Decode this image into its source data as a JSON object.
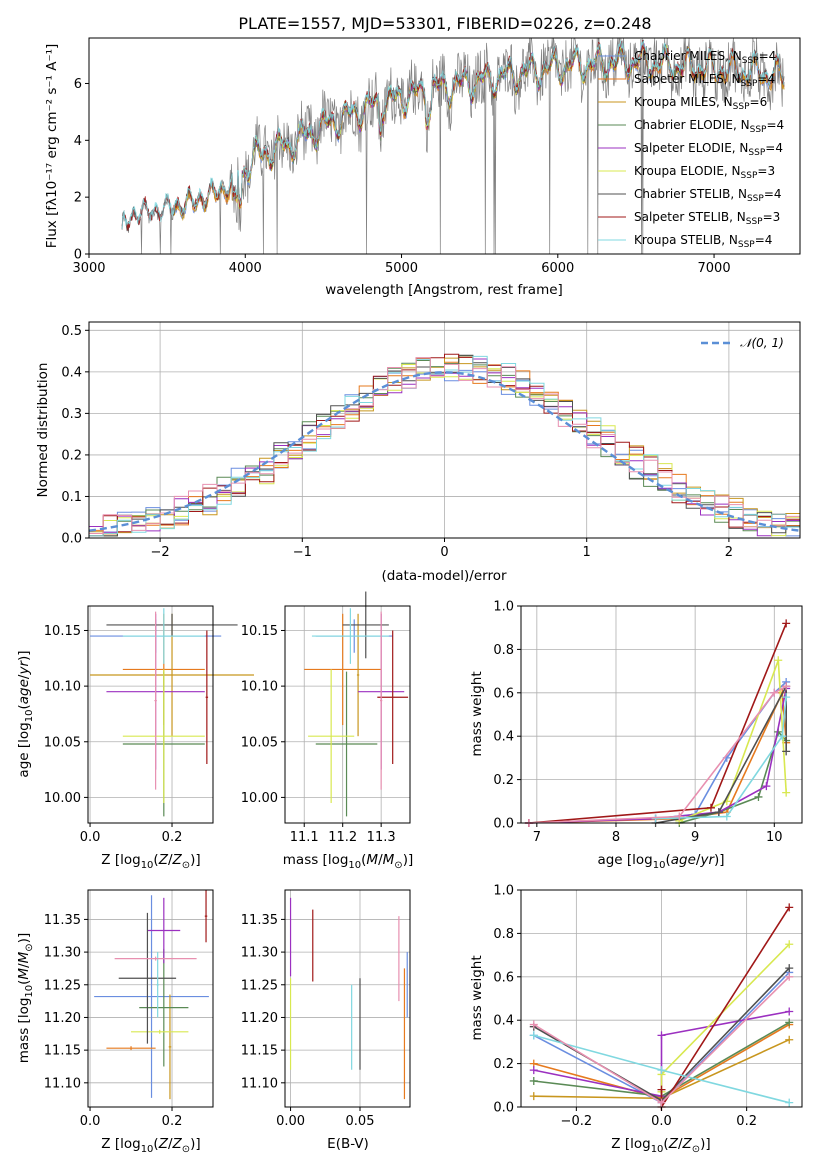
{
  "colors": {
    "Chabrier MILES": "#6a8ee0",
    "Salpeter MILES": "#e67a1e",
    "Kroupa MILES": "#c8961e",
    "Chabrier ELODIE": "#5a8a55",
    "Salpeter ELODIE": "#9b30c0",
    "Kroupa ELODIE": "#d8e850",
    "Chabrier STELIB": "#505050",
    "Salpeter STELIB": "#a01818",
    "Kroupa STELIB": "#80d8e0",
    "extra_pink": "#e890b0",
    "gaussian": "#5b8fd6"
  },
  "chart_data": [
    {
      "id": "spectrum",
      "type": "line",
      "title": "PLATE=1557, MJD=53301, FIBERID=0226, z=0.248",
      "xlabel": "wavelength [Angstrom, rest frame]",
      "ylabel": "Flux [fλ10⁻¹⁷ erg cm⁻² s⁻¹ A⁻¹]",
      "xlim": [
        3000,
        7550
      ],
      "ylim": [
        0,
        7.6
      ],
      "xticks": [
        "3000",
        "4000",
        "5000",
        "6000",
        "7000"
      ],
      "yticks": [
        "0",
        "2",
        "4",
        "6"
      ],
      "grid": false,
      "legend_position": "top-right",
      "legend": [
        {
          "label": "Chabrier MILES, N",
          "sub": "SSP",
          "suffix": "=4"
        },
        {
          "label": "Salpeter MILES, N",
          "sub": "SSP",
          "suffix": "=4"
        },
        {
          "label": "Kroupa MILES, N",
          "sub": "SSP",
          "suffix": "=6"
        },
        {
          "label": "Chabrier ELODIE, N",
          "sub": "SSP",
          "suffix": "=4"
        },
        {
          "label": "Salpeter ELODIE, N",
          "sub": "SSP",
          "suffix": "=4"
        },
        {
          "label": "Kroupa ELODIE, N",
          "sub": "SSP",
          "suffix": "=3"
        },
        {
          "label": "Chabrier STELIB, N",
          "sub": "SSP",
          "suffix": "=4"
        },
        {
          "label": "Salpeter STELIB, N",
          "sub": "SSP",
          "suffix": "=3"
        },
        {
          "label": "Kroupa STELIB, N",
          "sub": "SSP",
          "suffix": "=4"
        }
      ],
      "continuum_knots": [
        [
          3210,
          0.0
        ],
        [
          3215,
          1.0
        ],
        [
          3300,
          1.4
        ],
        [
          3500,
          1.55
        ],
        [
          3700,
          1.9
        ],
        [
          3900,
          2.35
        ],
        [
          3980,
          2.8
        ],
        [
          4050,
          3.4
        ],
        [
          4300,
          3.9
        ],
        [
          4500,
          4.5
        ],
        [
          4800,
          5.2
        ],
        [
          5200,
          5.8
        ],
        [
          5600,
          6.2
        ],
        [
          6000,
          6.6
        ],
        [
          6500,
          6.8
        ],
        [
          7000,
          6.5
        ],
        [
          7300,
          6.4
        ],
        [
          7450,
          6.2
        ]
      ]
    },
    {
      "id": "residuals",
      "type": "histogram",
      "xlabel": "(data-model)/error",
      "ylabel": "Normed distribution",
      "xlim": [
        -2.5,
        2.5
      ],
      "ylim": [
        0,
        0.52
      ],
      "xticks": [
        "−2",
        "−1",
        "0",
        "1",
        "2"
      ],
      "yticks": [
        "0.0",
        "0.1",
        "0.2",
        "0.3",
        "0.4",
        "0.5"
      ],
      "bin_width": 0.1,
      "grid": true,
      "legend_position": "top-right",
      "reference_curve": "𝒩(0, 1)"
    },
    {
      "id": "age_vs_Z",
      "type": "errorbar",
      "xlabel": "Z [log10(Z/Z⊙)]",
      "ylabel": "age [log10(age/yr)]",
      "xlim": [
        -0.005,
        0.3
      ],
      "ylim": [
        9.977,
        10.172
      ],
      "xticks": [
        "0.0",
        "0.2"
      ],
      "yticks": [
        "10.00",
        "10.05",
        "10.10",
        "10.15"
      ],
      "points": [
        {
          "c": "Chabrier MILES",
          "x": 0.16,
          "y": 10.145,
          "xe": 0.16,
          "ye": 0.015
        },
        {
          "c": "Salpeter MILES",
          "x": 0.18,
          "y": 10.115,
          "xe": 0.1,
          "ye": 0.05
        },
        {
          "c": "Kroupa MILES",
          "x": 0.2,
          "y": 10.11,
          "xe": 0.2,
          "ye": 0.055
        },
        {
          "c": "Chabrier ELODIE",
          "x": 0.18,
          "y": 10.048,
          "xe": 0.1,
          "ye": 0.065
        },
        {
          "c": "Salpeter ELODIE",
          "x": 0.16,
          "y": 10.095,
          "xe": 0.12,
          "ye": 0.07
        },
        {
          "c": "Kroupa ELODIE",
          "x": 0.18,
          "y": 10.055,
          "xe": 0.1,
          "ye": 0.06
        },
        {
          "c": "Chabrier STELIB",
          "x": 0.2,
          "y": 10.155,
          "xe": 0.16,
          "ye": 0.01
        },
        {
          "c": "Salpeter STELIB",
          "x": 0.285,
          "y": 10.09,
          "xe": 0.003,
          "ye": 0.06
        },
        {
          "c": "Kroupa STELIB",
          "x": 0.18,
          "y": 10.145,
          "xe": 0.1,
          "ye": 0.025
        },
        {
          "c": "extra_pink",
          "x": 0.16,
          "y": 10.087,
          "xe": 0.003,
          "ye": 0.08
        }
      ]
    },
    {
      "id": "age_vs_mass",
      "type": "errorbar",
      "xlabel": "mass [log10(M/M⊙)]",
      "ylabel": "",
      "xlim": [
        11.05,
        11.375
      ],
      "ylim": [
        9.977,
        10.172
      ],
      "xticks": [
        "11.1",
        "11.2",
        "11.3"
      ],
      "yticks": [
        "10.00",
        "10.05",
        "10.10",
        "10.15"
      ],
      "points": [
        {
          "c": "Chabrier MILES",
          "x": 11.23,
          "y": 10.145,
          "xe": 0.1,
          "ye": 0.015
        },
        {
          "c": "Salpeter MILES",
          "x": 11.2,
          "y": 10.115,
          "xe": 0.1,
          "ye": 0.05
        },
        {
          "c": "Kroupa MILES",
          "x": 11.24,
          "y": 10.11,
          "xe": 0.003,
          "ye": 0.055
        },
        {
          "c": "Chabrier ELODIE",
          "x": 11.21,
          "y": 10.048,
          "xe": 0.08,
          "ye": 0.065
        },
        {
          "c": "Salpeter ELODIE",
          "x": 11.3,
          "y": 10.095,
          "xe": 0.06,
          "ye": 0.07
        },
        {
          "c": "Kroupa ELODIE",
          "x": 11.17,
          "y": 10.055,
          "xe": 0.06,
          "ye": 0.06
        },
        {
          "c": "Chabrier STELIB",
          "x": 11.26,
          "y": 10.155,
          "xe": 0.06,
          "ye": 0.03
        },
        {
          "c": "Salpeter STELIB",
          "x": 11.33,
          "y": 10.09,
          "xe": 0.04,
          "ye": 0.06
        },
        {
          "c": "Kroupa STELIB",
          "x": 11.22,
          "y": 10.145,
          "xe": 0.1,
          "ye": 0.025
        },
        {
          "c": "extra_pink",
          "x": 11.3,
          "y": 10.087,
          "xe": 0.003,
          "ye": 0.08
        }
      ]
    },
    {
      "id": "massweight_vs_age",
      "type": "line",
      "xlabel": "age [log10(age/yr)]",
      "ylabel": "mass weight",
      "xlim": [
        6.8,
        10.35
      ],
      "ylim": [
        0,
        1
      ],
      "xticks": [
        "7",
        "8",
        "9",
        "10"
      ],
      "yticks": [
        "0.0",
        "0.2",
        "0.4",
        "0.6",
        "0.8",
        "1.0"
      ],
      "grid": true,
      "series": [
        {
          "c": "Chabrier MILES",
          "x": [
            6.9,
            8.5,
            9.0,
            9.4,
            10.0,
            10.15
          ],
          "y": [
            0.0,
            0.02,
            0.04,
            0.3,
            0.6,
            0.65
          ]
        },
        {
          "c": "Salpeter MILES",
          "x": [
            6.9,
            8.8,
            9.4,
            10.1,
            10.15
          ],
          "y": [
            0.0,
            0.02,
            0.05,
            0.6,
            0.37
          ]
        },
        {
          "c": "Chabrier ELODIE",
          "x": [
            8.8,
            9.3,
            9.8,
            10.05,
            10.15
          ],
          "y": [
            0.0,
            0.05,
            0.12,
            0.42,
            0.38
          ]
        },
        {
          "c": "Salpeter ELODIE",
          "x": [
            6.9,
            8.5,
            9.3,
            9.9,
            10.15
          ],
          "y": [
            0.0,
            0.02,
            0.05,
            0.17,
            0.62
          ]
        },
        {
          "c": "Kroupa ELODIE",
          "x": [
            8.8,
            9.4,
            10.05,
            10.15
          ],
          "y": [
            0.01,
            0.1,
            0.75,
            0.14
          ]
        },
        {
          "c": "Chabrier STELIB",
          "x": [
            8.5,
            9.3,
            10.15,
            10.15
          ],
          "y": [
            0.0,
            0.05,
            0.63,
            0.33
          ]
        },
        {
          "c": "Salpeter STELIB",
          "x": [
            6.9,
            9.2,
            10.15
          ],
          "y": [
            0.0,
            0.07,
            0.92
          ]
        },
        {
          "c": "Kroupa STELIB",
          "x": [
            8.5,
            9.4,
            10.1,
            10.15
          ],
          "y": [
            0.02,
            0.03,
            0.4,
            0.58
          ]
        },
        {
          "c": "extra_pink",
          "x": [
            6.9,
            8.8,
            10.0,
            10.15
          ],
          "y": [
            0.0,
            0.03,
            0.6,
            0.63
          ]
        }
      ]
    },
    {
      "id": "mass_vs_Z",
      "type": "errorbar",
      "xlabel": "Z [log10(Z/Z⊙)]",
      "ylabel": "mass [log10(M/M⊙)]",
      "xlim": [
        -0.005,
        0.3
      ],
      "ylim": [
        11.063,
        11.395
      ],
      "xticks": [
        "0.0",
        "0.2"
      ],
      "yticks": [
        "11.10",
        "11.15",
        "11.20",
        "11.25",
        "11.30",
        "11.35"
      ],
      "points": [
        {
          "c": "Chabrier MILES",
          "x": 0.15,
          "y": 11.232,
          "xe": 0.14,
          "ye": 0.155
        },
        {
          "c": "Salpeter MILES",
          "x": 0.1,
          "y": 11.153,
          "xe": 0.06,
          "ye": 0.003
        },
        {
          "c": "Kroupa MILES",
          "x": 0.195,
          "y": 11.155,
          "xe": 0.003,
          "ye": 0.08
        },
        {
          "c": "Chabrier ELODIE",
          "x": 0.18,
          "y": 11.215,
          "xe": 0.06,
          "ye": 0.09
        },
        {
          "c": "Salpeter ELODIE",
          "x": 0.18,
          "y": 11.333,
          "xe": 0.04,
          "ye": 0.05
        },
        {
          "c": "Kroupa ELODIE",
          "x": 0.17,
          "y": 11.178,
          "xe": 0.07,
          "ye": 0.003
        },
        {
          "c": "Chabrier STELIB",
          "x": 0.14,
          "y": 11.26,
          "xe": 0.07,
          "ye": 0.1
        },
        {
          "c": "Salpeter STELIB",
          "x": 0.283,
          "y": 11.355,
          "xe": 0.003,
          "ye": 0.04
        },
        {
          "c": "Kroupa STELIB",
          "x": 0.165,
          "y": 11.25,
          "xe": 0.003,
          "ye": 0.05
        },
        {
          "c": "extra_pink",
          "x": 0.16,
          "y": 11.29,
          "xe": 0.1,
          "ye": 0.003
        }
      ]
    },
    {
      "id": "mass_vs_ebv",
      "type": "errorbar",
      "xlabel": "E(B-V)",
      "ylabel": "",
      "xlim": [
        -0.004,
        0.086
      ],
      "ylim": [
        11.063,
        11.395
      ],
      "xticks": [
        "0.00",
        "0.05"
      ],
      "yticks": [
        "11.10",
        "11.15",
        "11.20",
        "11.25",
        "11.30",
        "11.35"
      ],
      "points": [
        {
          "c": "Salpeter ELODIE",
          "x": 0.0,
          "y": 11.323,
          "xe": 0.0,
          "ye": 0.06
        },
        {
          "c": "Kroupa ELODIE",
          "x": 0.0,
          "y": 11.19,
          "xe": 0.0,
          "ye": 0.07
        },
        {
          "c": "Salpeter STELIB",
          "x": 0.016,
          "y": 11.31,
          "xe": 0.0,
          "ye": 0.055
        },
        {
          "c": "Kroupa STELIB",
          "x": 0.044,
          "y": 11.185,
          "xe": 0.0,
          "ye": 0.065
        },
        {
          "c": "Chabrier STELIB",
          "x": 0.05,
          "y": 11.19,
          "xe": 0.0,
          "ye": 0.07
        },
        {
          "c": "extra_pink",
          "x": 0.078,
          "y": 11.29,
          "xe": 0.0,
          "ye": 0.065
        },
        {
          "c": "Salpeter MILES",
          "x": 0.082,
          "y": 11.175,
          "xe": 0.0,
          "ye": 0.1
        },
        {
          "c": "Chabrier MILES",
          "x": 0.084,
          "y": 11.25,
          "xe": 0.0,
          "ye": 0.05
        }
      ]
    },
    {
      "id": "massweight_vs_Z",
      "type": "line",
      "xlabel": "Z [log10(Z/Z⊙)]",
      "ylabel": "mass weight",
      "xlim": [
        -0.33,
        0.33
      ],
      "ylim": [
        0,
        1
      ],
      "xticks": [
        "−0.2",
        "0.0",
        "0.2"
      ],
      "yticks": [
        "0.0",
        "0.2",
        "0.4",
        "0.6",
        "0.8",
        "1.0"
      ],
      "grid": true,
      "series": [
        {
          "c": "Chabrier MILES",
          "x": [
            -0.3,
            0.0,
            0.3
          ],
          "y": [
            0.33,
            0.02,
            0.62
          ]
        },
        {
          "c": "Salpeter MILES",
          "x": [
            -0.3,
            0.0,
            0.3
          ],
          "y": [
            0.2,
            0.04,
            0.38
          ]
        },
        {
          "c": "Kroupa MILES",
          "x": [
            -0.3,
            0.0,
            0.3
          ],
          "y": [
            0.05,
            0.04,
            0.31
          ]
        },
        {
          "c": "Chabrier ELODIE",
          "x": [
            -0.3,
            0.0,
            0.3
          ],
          "y": [
            0.12,
            0.05,
            0.39
          ]
        },
        {
          "c": "Salpeter ELODIE",
          "x": [
            -0.3,
            0.0,
            0.0,
            0.3
          ],
          "y": [
            0.17,
            0.05,
            0.33,
            0.44
          ]
        },
        {
          "c": "Kroupa ELODIE",
          "x": [
            0.0,
            0.0,
            0.3
          ],
          "y": [
            0.07,
            0.15,
            0.75
          ]
        },
        {
          "c": "Chabrier STELIB",
          "x": [
            -0.3,
            0.0,
            0.3
          ],
          "y": [
            0.37,
            0.03,
            0.64
          ]
        },
        {
          "c": "Salpeter STELIB",
          "x": [
            0.0,
            0.0,
            0.3
          ],
          "y": [
            0.08,
            0.0,
            0.92
          ]
        },
        {
          "c": "Kroupa STELIB",
          "x": [
            -0.3,
            0.0,
            0.3
          ],
          "y": [
            0.33,
            0.17,
            0.02
          ]
        },
        {
          "c": "extra_pink",
          "x": [
            -0.3,
            0.0,
            0.3
          ],
          "y": [
            0.38,
            0.02,
            0.6
          ]
        }
      ]
    }
  ]
}
